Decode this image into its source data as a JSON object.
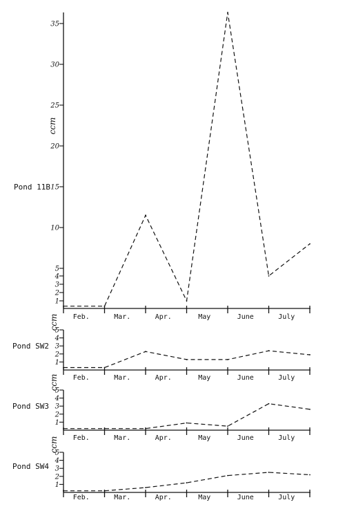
{
  "chart_data": [
    {
      "type": "line",
      "series": [
        {
          "name": "Pond 11B",
          "values": [
            0.3,
            0.3,
            11.5,
            1,
            36,
            4,
            8
          ]
        }
      ],
      "x": [
        1,
        2,
        3,
        4,
        5,
        6,
        7
      ],
      "categories": [
        "Feb.",
        "Mar.",
        "Apr.",
        "May",
        "June",
        "July"
      ],
      "ylabel": "ccm",
      "ylim": [
        0,
        36
      ],
      "yticks": [
        1,
        2,
        3,
        4,
        5,
        10,
        15,
        20,
        25,
        30,
        35
      ],
      "ytick_labels": [
        "1",
        "2",
        "3",
        "4",
        "5",
        "10",
        "15",
        "20",
        "25",
        "30",
        "35"
      ],
      "line_style": "dashed",
      "grid": false
    },
    {
      "type": "line",
      "series": [
        {
          "name": "Pond SW2",
          "values": [
            0.3,
            0.3,
            2.3,
            1.3,
            1.3,
            2.4,
            1.9
          ]
        }
      ],
      "x": [
        1,
        2,
        3,
        4,
        5,
        6,
        7
      ],
      "categories": [
        "Feb.",
        "Mar.",
        "Apr.",
        "May",
        "June",
        "July"
      ],
      "ylabel": "ccm",
      "ylim": [
        0,
        5
      ],
      "yticks": [
        1,
        2,
        3,
        4,
        5
      ],
      "ytick_labels": [
        "1",
        "2",
        "3",
        "4",
        "5"
      ],
      "line_style": "dashed",
      "grid": false
    },
    {
      "type": "line",
      "series": [
        {
          "name": "Pond SW3",
          "values": [
            0.2,
            0.2,
            0.2,
            0.9,
            0.5,
            3.3,
            2.6
          ]
        }
      ],
      "x": [
        1,
        2,
        3,
        4,
        5,
        6,
        7
      ],
      "categories": [
        "Feb.",
        "Mar.",
        "Apr.",
        "May",
        "June",
        "July"
      ],
      "ylabel": "ccm",
      "ylim": [
        0,
        5
      ],
      "yticks": [
        1,
        2,
        3,
        4,
        5
      ],
      "ytick_labels": [
        "1",
        "2",
        "3",
        "4",
        "5"
      ],
      "line_style": "dashed",
      "grid": false
    },
    {
      "type": "line",
      "series": [
        {
          "name": "Pond SW4",
          "values": [
            0.2,
            0.2,
            0.6,
            1.2,
            2.1,
            2.5,
            2.2
          ]
        }
      ],
      "x": [
        1,
        2,
        3,
        4,
        5,
        6,
        7
      ],
      "categories": [
        "Feb.",
        "Mar.",
        "Apr.",
        "May",
        "June",
        "July"
      ],
      "ylabel": "ccm",
      "ylim": [
        0,
        5
      ],
      "yticks": [
        1,
        2,
        3,
        4,
        5
      ],
      "ytick_labels": [
        "1",
        "2",
        "3",
        "4",
        "5"
      ],
      "line_style": "dashed",
      "grid": false
    }
  ],
  "colors": {
    "ink": "#111111",
    "background": "#ffffff"
  }
}
